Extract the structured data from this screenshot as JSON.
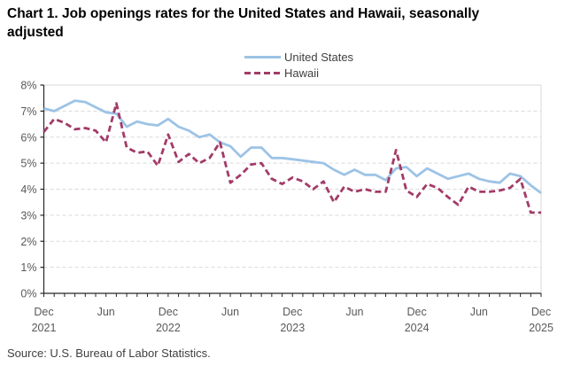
{
  "title": "Chart 1. Job openings rates for the United States and Hawaii, seasonally adjusted",
  "source_note": "Source: U.S. Bureau of Labor Statistics.",
  "colors": {
    "united_states_line": "#9DC3E6",
    "hawaii_line": "#A23B68",
    "gridline": "#D9D9D9",
    "axis": "#262626",
    "axis_text": "#595959"
  },
  "chart_data": {
    "type": "line",
    "title": "Chart 1. Job openings rates for the United States and Hawaii, seasonally adjusted",
    "xlabel": "",
    "ylabel": "",
    "ylim": [
      0,
      8
    ],
    "y_tick_labels": [
      "0%",
      "1%",
      "2%",
      "3%",
      "4%",
      "5%",
      "6%",
      "7%",
      "8%"
    ],
    "grid": "horizontal dashed gridlines at each 1%",
    "legend_position": "top center",
    "x_interval": "monthly",
    "x_range": "Dec 2021 to Dec 2025",
    "x_tick_labels": [
      {
        "month": "Dec",
        "year": "2021",
        "index": 0
      },
      {
        "month": "Jun",
        "year": "",
        "index": 6
      },
      {
        "month": "Dec",
        "year": "2022",
        "index": 12
      },
      {
        "month": "Jun",
        "year": "",
        "index": 18
      },
      {
        "month": "Dec",
        "year": "2023",
        "index": 24
      },
      {
        "month": "Jun",
        "year": "",
        "index": 30
      },
      {
        "month": "Dec",
        "year": "2024",
        "index": 36
      },
      {
        "month": "Jun",
        "year": "",
        "index": 42
      },
      {
        "month": "Dec",
        "year": "2025",
        "index": 48
      }
    ],
    "categories": [
      "Dec-21",
      "Jan-22",
      "Feb-22",
      "Mar-22",
      "Apr-22",
      "May-22",
      "Jun-22",
      "Jul-22",
      "Aug-22",
      "Sep-22",
      "Oct-22",
      "Nov-22",
      "Dec-22",
      "Jan-23",
      "Feb-23",
      "Mar-23",
      "Apr-23",
      "May-23",
      "Jun-23",
      "Jul-23",
      "Aug-23",
      "Sep-23",
      "Oct-23",
      "Nov-23",
      "Dec-23",
      "Jan-24",
      "Feb-24",
      "Mar-24",
      "Apr-24",
      "May-24",
      "Jun-24",
      "Jul-24",
      "Aug-24",
      "Sep-24",
      "Oct-24",
      "Nov-24",
      "Dec-24",
      "Jan-25",
      "Feb-25",
      "Mar-25",
      "Apr-25",
      "May-25",
      "Jun-25",
      "Jul-25",
      "Aug-25",
      "Sep-25",
      "Oct-25",
      "Nov-25",
      "Dec-25"
    ],
    "series": [
      {
        "name": "United States",
        "color": "#9DC3E6",
        "line_style": "solid",
        "values": [
          7.1,
          7.0,
          7.2,
          7.4,
          7.35,
          7.15,
          6.95,
          6.9,
          6.4,
          6.6,
          6.5,
          6.45,
          6.7,
          6.4,
          6.25,
          6.0,
          6.1,
          5.8,
          5.65,
          5.25,
          5.6,
          5.6,
          5.2,
          5.2,
          5.15,
          5.1,
          5.05,
          5.0,
          4.75,
          4.55,
          4.75,
          4.55,
          4.55,
          4.35,
          4.8,
          4.85,
          4.5,
          4.8,
          4.6,
          4.4,
          4.5,
          4.6,
          4.4,
          4.3,
          4.25,
          4.6,
          4.5,
          4.15,
          3.85
        ]
      },
      {
        "name": "Hawaii",
        "color": "#A23B68",
        "line_style": "dashed",
        "values": [
          6.2,
          6.7,
          6.55,
          6.3,
          6.35,
          6.25,
          5.8,
          7.3,
          5.6,
          5.4,
          5.45,
          4.9,
          6.1,
          5.05,
          5.35,
          5.0,
          5.2,
          5.8,
          4.25,
          4.55,
          4.95,
          5.0,
          4.4,
          4.2,
          4.45,
          4.3,
          4.0,
          4.3,
          3.5,
          4.1,
          3.9,
          4.0,
          3.9,
          3.9,
          5.5,
          3.95,
          3.7,
          4.2,
          4.05,
          3.7,
          3.4,
          4.1,
          3.9,
          3.9,
          3.95,
          4.05,
          4.4,
          3.1,
          3.1
        ]
      }
    ]
  }
}
